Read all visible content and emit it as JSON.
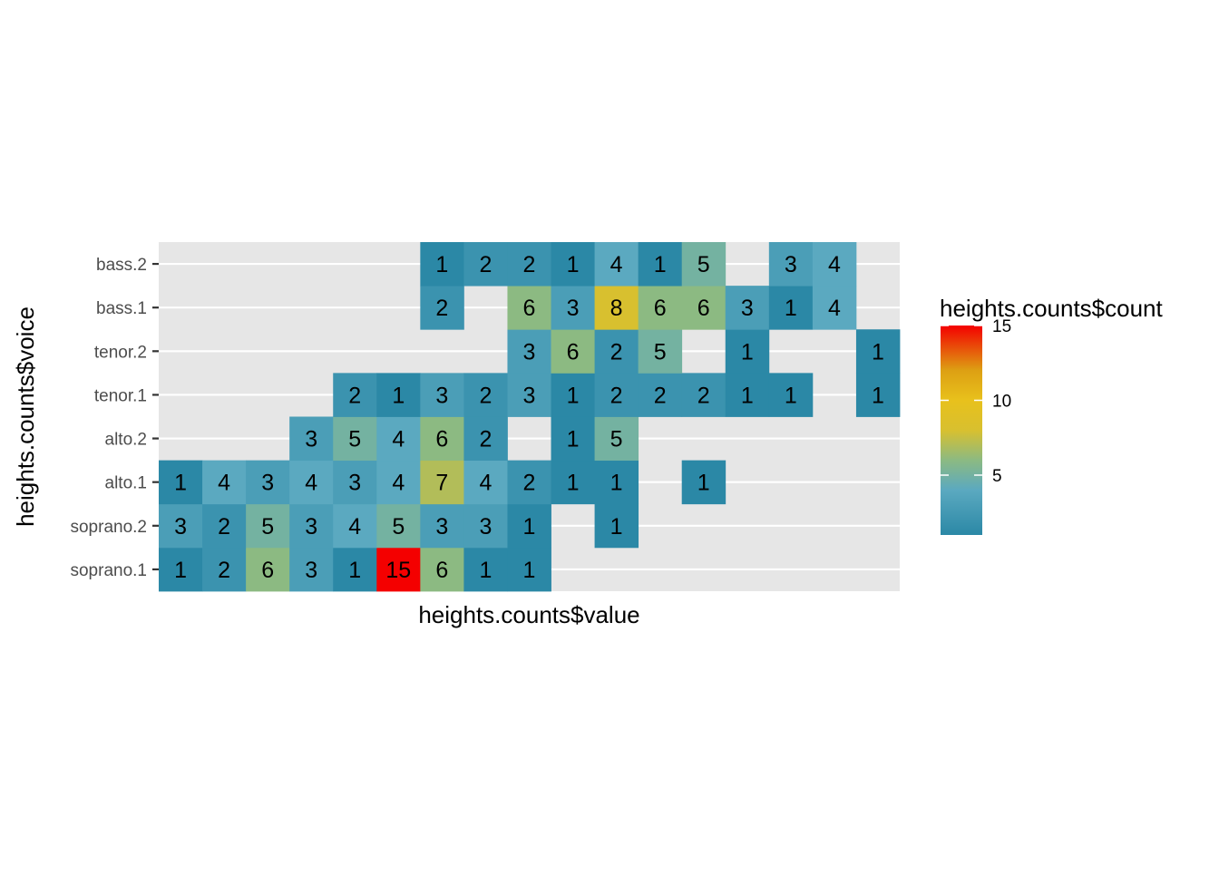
{
  "chart_data": {
    "type": "heatmap",
    "title": "",
    "xlabel": "heights.counts$value",
    "ylabel": "heights.counts$voice",
    "x_tick_labels_visible": false,
    "x_columns": 17,
    "y_categories": [
      "soprano.1",
      "soprano.2",
      "alto.1",
      "alto.2",
      "tenor.1",
      "tenor.2",
      "bass.1",
      "bass.2"
    ],
    "cells": [
      {
        "voice": "soprano.1",
        "col": 1,
        "count": 1
      },
      {
        "voice": "soprano.1",
        "col": 2,
        "count": 2
      },
      {
        "voice": "soprano.1",
        "col": 3,
        "count": 6
      },
      {
        "voice": "soprano.1",
        "col": 4,
        "count": 3
      },
      {
        "voice": "soprano.1",
        "col": 5,
        "count": 1
      },
      {
        "voice": "soprano.1",
        "col": 6,
        "count": 15
      },
      {
        "voice": "soprano.1",
        "col": 7,
        "count": 6
      },
      {
        "voice": "soprano.1",
        "col": 8,
        "count": 1
      },
      {
        "voice": "soprano.1",
        "col": 9,
        "count": 1
      },
      {
        "voice": "soprano.2",
        "col": 1,
        "count": 3
      },
      {
        "voice": "soprano.2",
        "col": 2,
        "count": 2
      },
      {
        "voice": "soprano.2",
        "col": 3,
        "count": 5
      },
      {
        "voice": "soprano.2",
        "col": 4,
        "count": 3
      },
      {
        "voice": "soprano.2",
        "col": 5,
        "count": 4
      },
      {
        "voice": "soprano.2",
        "col": 6,
        "count": 5
      },
      {
        "voice": "soprano.2",
        "col": 7,
        "count": 3
      },
      {
        "voice": "soprano.2",
        "col": 8,
        "count": 3
      },
      {
        "voice": "soprano.2",
        "col": 9,
        "count": 1
      },
      {
        "voice": "soprano.2",
        "col": 11,
        "count": 1
      },
      {
        "voice": "alto.1",
        "col": 1,
        "count": 1
      },
      {
        "voice": "alto.1",
        "col": 2,
        "count": 4
      },
      {
        "voice": "alto.1",
        "col": 3,
        "count": 3
      },
      {
        "voice": "alto.1",
        "col": 4,
        "count": 4
      },
      {
        "voice": "alto.1",
        "col": 5,
        "count": 3
      },
      {
        "voice": "alto.1",
        "col": 6,
        "count": 4
      },
      {
        "voice": "alto.1",
        "col": 7,
        "count": 7
      },
      {
        "voice": "alto.1",
        "col": 8,
        "count": 4
      },
      {
        "voice": "alto.1",
        "col": 9,
        "count": 2
      },
      {
        "voice": "alto.1",
        "col": 10,
        "count": 1
      },
      {
        "voice": "alto.1",
        "col": 11,
        "count": 1
      },
      {
        "voice": "alto.1",
        "col": 13,
        "count": 1
      },
      {
        "voice": "alto.2",
        "col": 4,
        "count": 3
      },
      {
        "voice": "alto.2",
        "col": 5,
        "count": 5
      },
      {
        "voice": "alto.2",
        "col": 6,
        "count": 4
      },
      {
        "voice": "alto.2",
        "col": 7,
        "count": 6
      },
      {
        "voice": "alto.2",
        "col": 8,
        "count": 2
      },
      {
        "voice": "alto.2",
        "col": 10,
        "count": 1
      },
      {
        "voice": "alto.2",
        "col": 11,
        "count": 5
      },
      {
        "voice": "tenor.1",
        "col": 5,
        "count": 2
      },
      {
        "voice": "tenor.1",
        "col": 6,
        "count": 1
      },
      {
        "voice": "tenor.1",
        "col": 7,
        "count": 3
      },
      {
        "voice": "tenor.1",
        "col": 8,
        "count": 2
      },
      {
        "voice": "tenor.1",
        "col": 9,
        "count": 3
      },
      {
        "voice": "tenor.1",
        "col": 10,
        "count": 1
      },
      {
        "voice": "tenor.1",
        "col": 11,
        "count": 2
      },
      {
        "voice": "tenor.1",
        "col": 12,
        "count": 2
      },
      {
        "voice": "tenor.1",
        "col": 13,
        "count": 2
      },
      {
        "voice": "tenor.1",
        "col": 14,
        "count": 1
      },
      {
        "voice": "tenor.1",
        "col": 15,
        "count": 1
      },
      {
        "voice": "tenor.1",
        "col": 17,
        "count": 1
      },
      {
        "voice": "tenor.2",
        "col": 9,
        "count": 3
      },
      {
        "voice": "tenor.2",
        "col": 10,
        "count": 6
      },
      {
        "voice": "tenor.2",
        "col": 11,
        "count": 2
      },
      {
        "voice": "tenor.2",
        "col": 12,
        "count": 5
      },
      {
        "voice": "tenor.2",
        "col": 14,
        "count": 1
      },
      {
        "voice": "tenor.2",
        "col": 17,
        "count": 1
      },
      {
        "voice": "bass.1",
        "col": 7,
        "count": 2
      },
      {
        "voice": "bass.1",
        "col": 9,
        "count": 6
      },
      {
        "voice": "bass.1",
        "col": 10,
        "count": 3
      },
      {
        "voice": "bass.1",
        "col": 11,
        "count": 8
      },
      {
        "voice": "bass.1",
        "col": 12,
        "count": 6
      },
      {
        "voice": "bass.1",
        "col": 13,
        "count": 6
      },
      {
        "voice": "bass.1",
        "col": 14,
        "count": 3
      },
      {
        "voice": "bass.1",
        "col": 15,
        "count": 1
      },
      {
        "voice": "bass.1",
        "col": 16,
        "count": 4
      },
      {
        "voice": "bass.2",
        "col": 7,
        "count": 1
      },
      {
        "voice": "bass.2",
        "col": 8,
        "count": 2
      },
      {
        "voice": "bass.2",
        "col": 9,
        "count": 2
      },
      {
        "voice": "bass.2",
        "col": 10,
        "count": 1
      },
      {
        "voice": "bass.2",
        "col": 11,
        "count": 4
      },
      {
        "voice": "bass.2",
        "col": 12,
        "count": 1
      },
      {
        "voice": "bass.2",
        "col": 13,
        "count": 5
      },
      {
        "voice": "bass.2",
        "col": 15,
        "count": 3
      },
      {
        "voice": "bass.2",
        "col": 16,
        "count": 4
      }
    ],
    "legend": {
      "title": "heights.counts$count",
      "position": "right",
      "min": 1,
      "max": 15,
      "ticks": [
        5,
        10,
        15
      ],
      "tick_labels": [
        "5",
        "10",
        "15"
      ],
      "color_stops": [
        {
          "value": 1,
          "color": "#2b88a6"
        },
        {
          "value": 4,
          "color": "#5ba9c0"
        },
        {
          "value": 6,
          "color": "#8cba82"
        },
        {
          "value": 8,
          "color": "#d8c02f"
        },
        {
          "value": 10,
          "color": "#e8c11c"
        },
        {
          "value": 12,
          "color": "#dda013"
        },
        {
          "value": 15,
          "color": "#f40000"
        }
      ]
    },
    "panel_background": "#e6e6e6",
    "grid": true
  }
}
